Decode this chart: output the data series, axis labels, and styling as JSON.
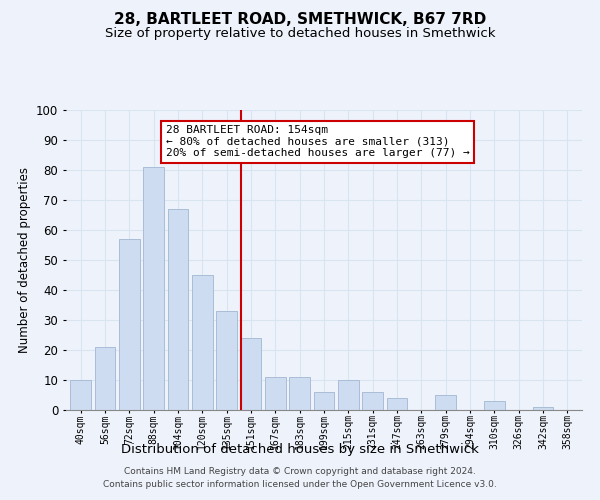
{
  "title": "28, BARTLEET ROAD, SMETHWICK, B67 7RD",
  "subtitle": "Size of property relative to detached houses in Smethwick",
  "xlabel": "Distribution of detached houses by size in Smethwick",
  "ylabel": "Number of detached properties",
  "bar_labels": [
    "40sqm",
    "56sqm",
    "72sqm",
    "88sqm",
    "104sqm",
    "120sqm",
    "135sqm",
    "151sqm",
    "167sqm",
    "183sqm",
    "199sqm",
    "215sqm",
    "231sqm",
    "247sqm",
    "263sqm",
    "279sqm",
    "294sqm",
    "310sqm",
    "326sqm",
    "342sqm",
    "358sqm"
  ],
  "bar_values": [
    10,
    21,
    57,
    81,
    67,
    45,
    33,
    24,
    11,
    11,
    6,
    10,
    6,
    4,
    0,
    5,
    0,
    3,
    0,
    1,
    0
  ],
  "bar_color": "#cddcf0",
  "bar_edge_color": "#aabdd8",
  "vline_color": "#cc0000",
  "vline_x": 7,
  "annotation_line1": "28 BARTLEET ROAD: 154sqm",
  "annotation_line2": "← 80% of detached houses are smaller (313)",
  "annotation_line3": "20% of semi-detached houses are larger (77) →",
  "annotation_box_facecolor": "#ffffff",
  "annotation_box_edgecolor": "#cc0000",
  "ylim": [
    0,
    100
  ],
  "yticks": [
    0,
    10,
    20,
    30,
    40,
    50,
    60,
    70,
    80,
    90,
    100
  ],
  "footer_line1": "Contains HM Land Registry data © Crown copyright and database right 2024.",
  "footer_line2": "Contains public sector information licensed under the Open Government Licence v3.0.",
  "background_color": "#eef2fb",
  "grid_color": "#d8e4f0",
  "title_fontsize": 11,
  "subtitle_fontsize": 9.5,
  "ylabel_fontsize": 8.5,
  "xlabel_fontsize": 9.5,
  "tick_fontsize": 7,
  "annotation_fontsize": 8,
  "footer_fontsize": 6.5
}
